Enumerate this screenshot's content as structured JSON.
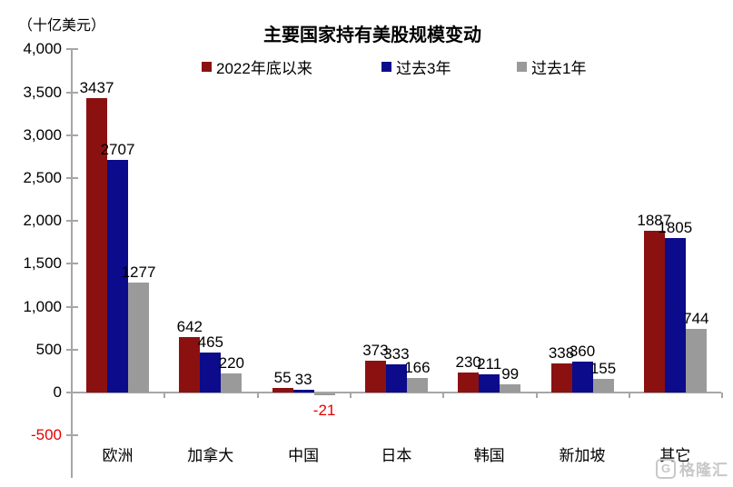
{
  "unit_label": "（十亿美元）",
  "watermark": "格隆汇",
  "chart_data": {
    "type": "bar",
    "title": "主要国家持有美股规模变动",
    "unit": "（十亿美元）",
    "categories": [
      "欧洲",
      "加拿大",
      "中国",
      "日本",
      "韩国",
      "新加坡",
      "其它"
    ],
    "series": [
      {
        "name": "2022年底以来",
        "color": "#8b1111",
        "values": [
          3437,
          642,
          55,
          373,
          230,
          338,
          1887
        ]
      },
      {
        "name": "过去3年",
        "color": "#0b0b8b",
        "values": [
          2707,
          465,
          33,
          333,
          211,
          360,
          1805
        ]
      },
      {
        "name": "过去1年",
        "color": "#9a9a9a",
        "values": [
          1277,
          220,
          -21,
          166,
          99,
          155,
          744
        ]
      }
    ],
    "ylim": [
      -500,
      4000
    ],
    "ytick_step": 500,
    "ytick_labels": [
      "4,000",
      "3,500",
      "3,000",
      "2,500",
      "2,000",
      "1,500",
      "1,000",
      "500",
      "0",
      "-500"
    ],
    "grid": false,
    "legend_position": "top",
    "colors": {
      "axis": "#a6a6a6",
      "label": "#000000",
      "negative_label": "#e60000",
      "watermark": "#c8c8c8"
    }
  }
}
